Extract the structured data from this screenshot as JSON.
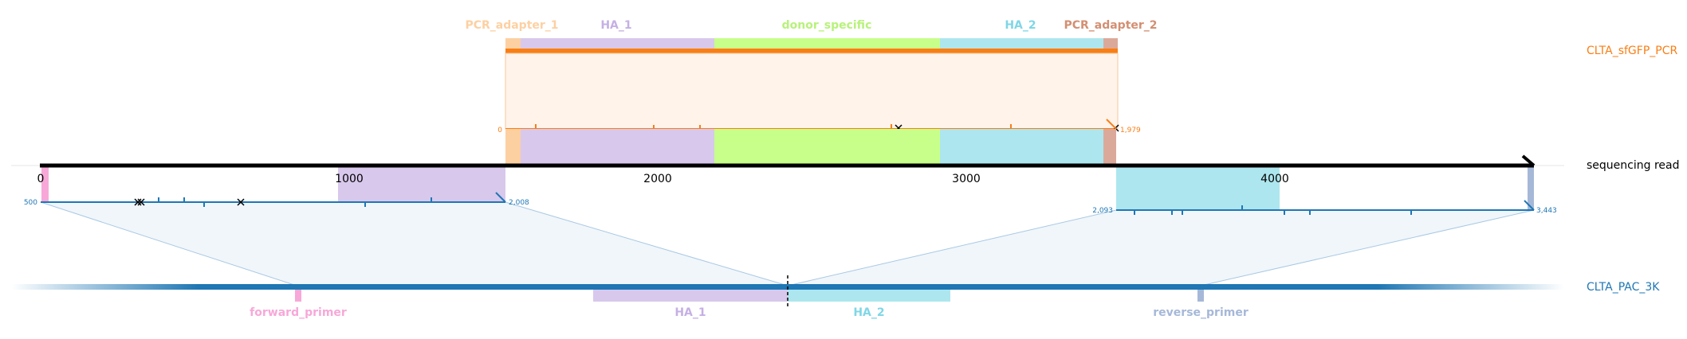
{
  "colors": {
    "pcr_adapter_1": "#fdd0a2",
    "pcr_adapter_1_text": "#fdd0a2",
    "ha_1": "#d8c8ec",
    "ha_1_text": "#c5b0e4",
    "donor_specific": "#c7ff8a",
    "donor_specific_text": "#b8f27a",
    "ha_2": "#ade6ee",
    "ha_2_text": "#80d6e6",
    "pcr_adapter_2": "#dba99a",
    "pcr_adapter_2_text": "#d38f72",
    "pcr_track": "#f97e15",
    "pcr_fill": "#fff3ea",
    "read_line": "#1f77b4",
    "pac_track": "#1f77b4",
    "forward_primer": "#f7a8d8",
    "reverse_primer": "#a6b8d8",
    "pac_label": "#1f77b4"
  },
  "top_features": [
    {
      "name": "PCR_adapter_1",
      "color_key": "pcr_adapter_1_text"
    },
    {
      "name": "HA_1",
      "color_key": "ha_1_text"
    },
    {
      "name": "donor_specific",
      "color_key": "donor_specific_text"
    },
    {
      "name": "HA_2",
      "color_key": "ha_2_text"
    },
    {
      "name": "PCR_adapter_2",
      "color_key": "pcr_adapter_2_text"
    }
  ],
  "track_labels": {
    "pcr": "CLTA_sfGFP_PCR",
    "read": "sequencing read",
    "pac": "CLTA_PAC_3K"
  },
  "read_axis": {
    "ticks": [
      "0",
      "1000",
      "2000",
      "3000",
      "4000"
    ]
  },
  "pcr_alignment": {
    "start": "0",
    "end": "1,979"
  },
  "left_alignment": {
    "start": "500",
    "end": "2,008"
  },
  "right_alignment": {
    "start": "2,093",
    "end": "3,443"
  },
  "bottom_features": [
    {
      "name": "forward_primer",
      "color_key": "forward_primer"
    },
    {
      "name": "HA_1",
      "color_key": "ha_1_text"
    },
    {
      "name": "HA_2",
      "color_key": "ha_2_text"
    },
    {
      "name": "reverse_primer",
      "color_key": "reverse_primer"
    }
  ]
}
